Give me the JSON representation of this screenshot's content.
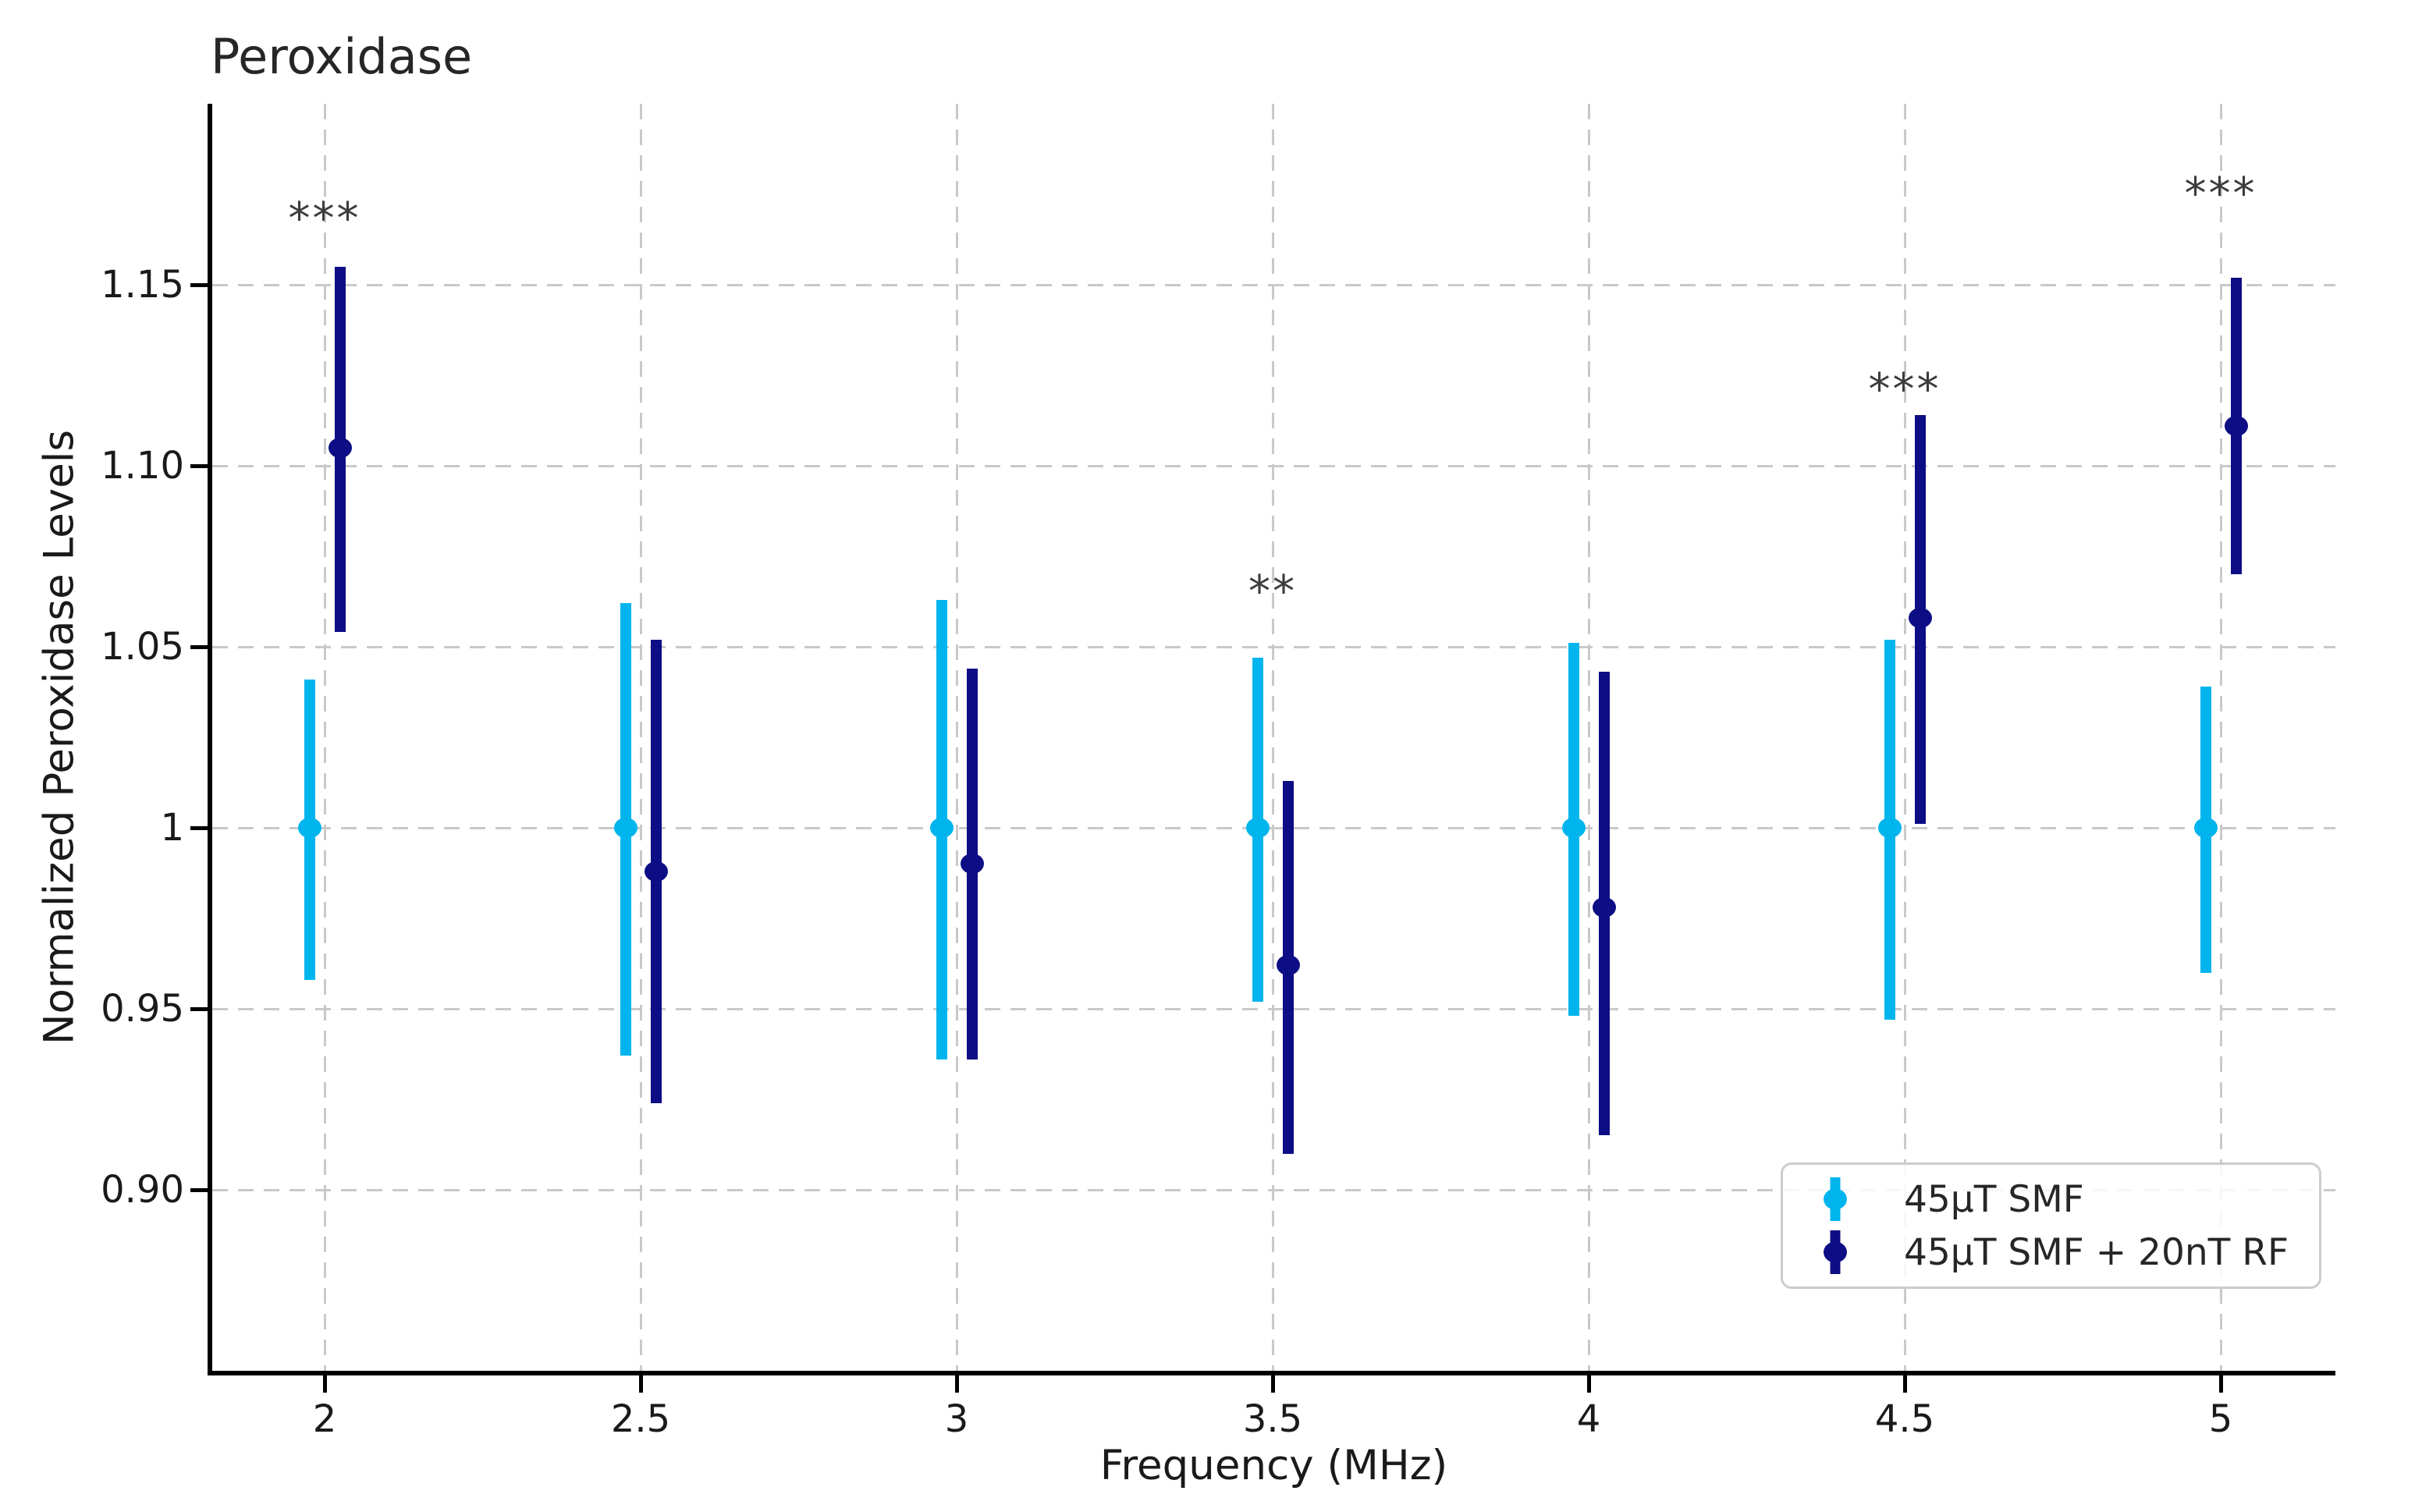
{
  "title": "Peroxidase",
  "axes": {
    "xlabel": "Frequency (MHz)",
    "ylabel": "Normalized Peroxidase Levels"
  },
  "legend": {
    "position": "lower right",
    "items": [
      {
        "label": "45µT SMF",
        "color": "#00B5EE"
      },
      {
        "label": "45µT SMF + 20nT RF",
        "color": "#0D0D85"
      }
    ]
  },
  "chart_data": {
    "type": "scatter",
    "subtype": "errorbar",
    "title": "Peroxidase",
    "xlabel": "Frequency (MHz)",
    "ylabel": "Normalized Peroxidase Levels",
    "xlim": [
      1.82,
      5.18
    ],
    "ylim": [
      0.85,
      1.2
    ],
    "grid": true,
    "x": [
      2,
      2.5,
      3,
      3.5,
      4,
      4.5,
      5
    ],
    "x_tick_labels": [
      "2",
      "2.5",
      "3",
      "3.5",
      "4",
      "4.5",
      "5"
    ],
    "y_ticks": [
      {
        "value": 1.15,
        "label": "1.15"
      },
      {
        "value": 1.1,
        "label": "1.10"
      },
      {
        "value": 1.05,
        "label": "1.05"
      },
      {
        "value": 1.0,
        "label": "1"
      },
      {
        "value": 0.95,
        "label": "0.95"
      },
      {
        "value": 0.9,
        "label": "0.90"
      }
    ],
    "series": [
      {
        "name": "45µT SMF",
        "color": "#00B5EE",
        "x_offset": -0.024,
        "means": [
          1.0,
          1.0,
          1.0,
          1.0,
          1.0,
          1.0,
          1.0
        ],
        "err_up": [
          0.041,
          0.062,
          0.063,
          0.047,
          0.051,
          0.052,
          0.039
        ],
        "err_down": [
          0.042,
          0.063,
          0.064,
          0.048,
          0.052,
          0.053,
          0.04
        ]
      },
      {
        "name": "45µT SMF + 20nT RF",
        "color": "#0D0D85",
        "x_offset": 0.025,
        "means": [
          1.105,
          0.988,
          0.99,
          0.962,
          0.978,
          1.058,
          1.111
        ],
        "err_up": [
          0.05,
          0.064,
          0.054,
          0.051,
          0.065,
          0.056,
          0.041
        ],
        "err_down": [
          0.051,
          0.064,
          0.054,
          0.052,
          0.063,
          0.057,
          0.041
        ]
      }
    ],
    "significance": [
      {
        "x": 2.0,
        "label": "***",
        "y": 1.168
      },
      {
        "x": 3.5,
        "label": "**",
        "y": 1.065
      },
      {
        "x": 4.5,
        "label": "***",
        "y": 1.121
      },
      {
        "x": 5.0,
        "label": "***",
        "y": 1.175
      }
    ]
  }
}
